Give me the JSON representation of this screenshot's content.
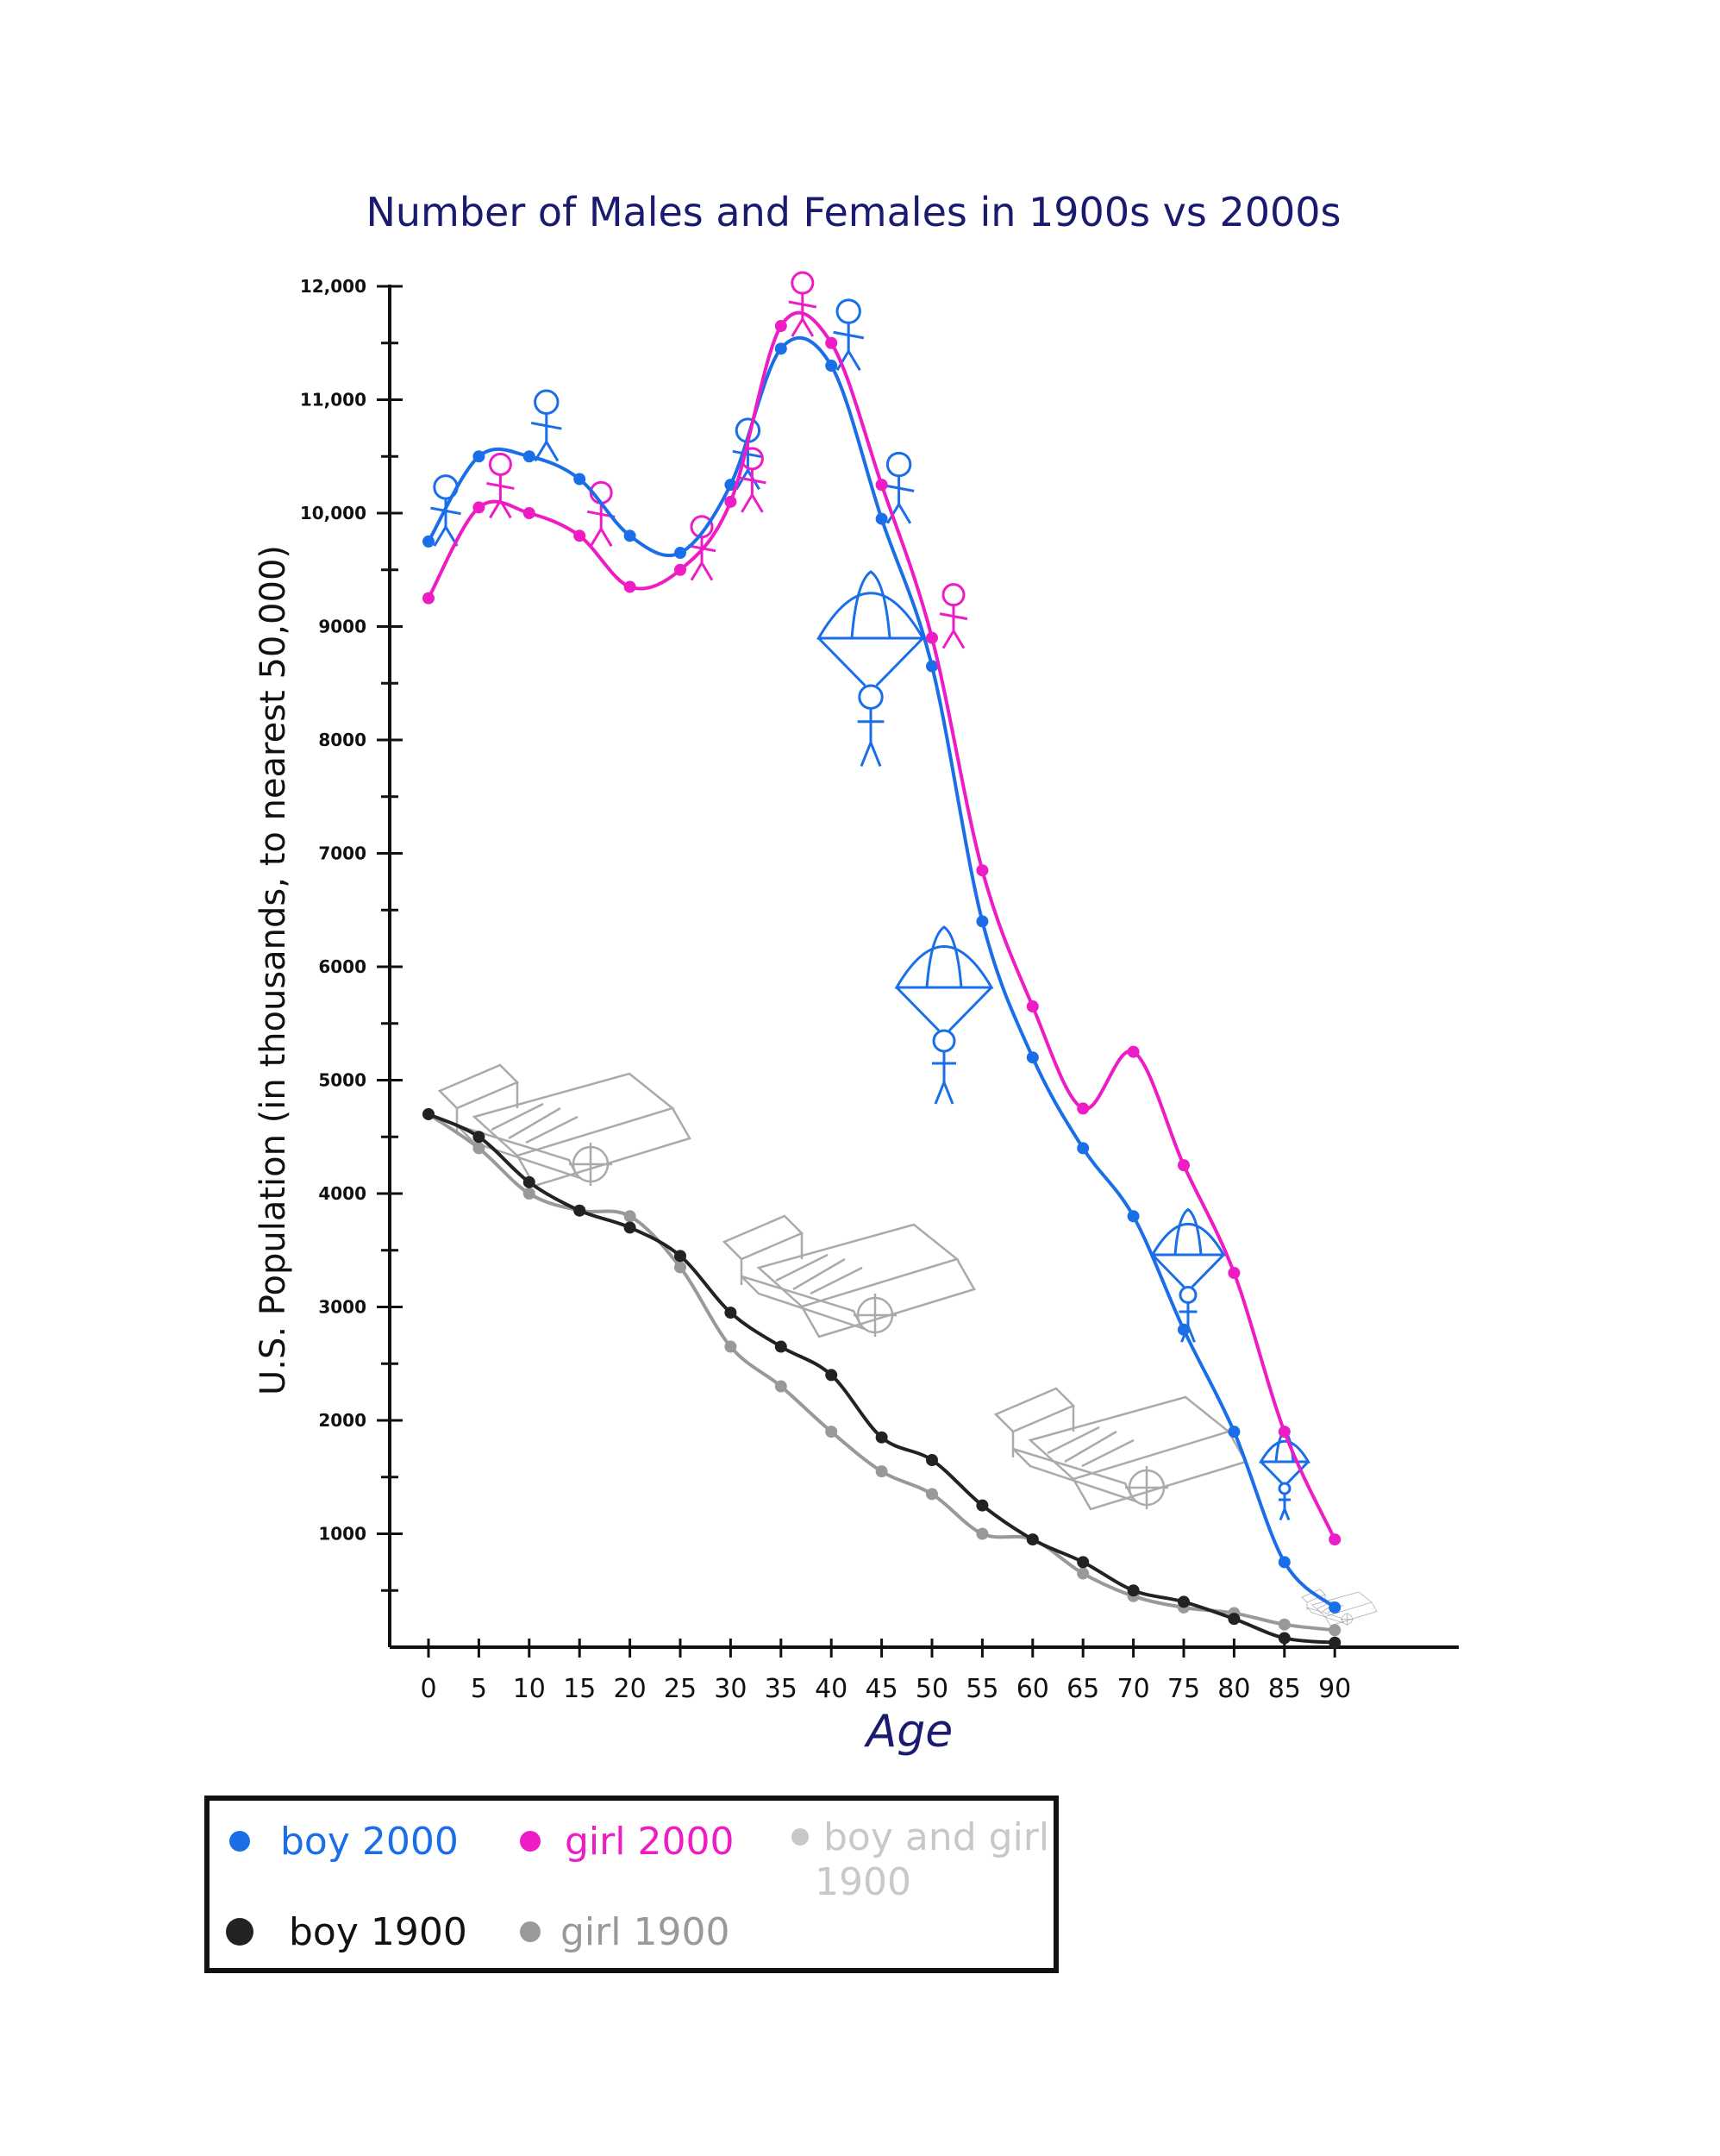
{
  "chart_data": {
    "type": "line",
    "title": "Number of Males and Females in 1900s vs 2000s",
    "xlabel": "Age",
    "ylabel": "U.S. Population (in thousands, to nearest 50,000)",
    "x": [
      0,
      5,
      10,
      15,
      20,
      25,
      30,
      35,
      40,
      45,
      50,
      55,
      60,
      65,
      70,
      75,
      80,
      85,
      90
    ],
    "x_tick_labels": [
      "0",
      "5",
      "10",
      "15",
      "20",
      "25",
      "30",
      "35",
      "40",
      "45",
      "50",
      "55",
      "60",
      "65",
      "70",
      "75",
      "80",
      "85",
      "90"
    ],
    "y_tick_labels": [
      {
        "value": 12000,
        "label": "12,000"
      },
      {
        "value": 11000,
        "label": "11,000"
      },
      {
        "value": 10000,
        "label": "10,000"
      },
      {
        "value": 9000,
        "label": "9000"
      },
      {
        "value": 8000,
        "label": "8000"
      },
      {
        "value": 7000,
        "label": "7000"
      },
      {
        "value": 6000,
        "label": "6000"
      },
      {
        "value": 5000,
        "label": "5000"
      },
      {
        "value": 4000,
        "label": "4000"
      },
      {
        "value": 3000,
        "label": "3000"
      },
      {
        "value": 2000,
        "label": "2000"
      },
      {
        "value": 1000,
        "label": "1000"
      }
    ],
    "ylim": [
      0,
      12000
    ],
    "xlim": [
      -4,
      100
    ],
    "grid": false,
    "legend_position": "bottom-left",
    "series": [
      {
        "name": "boy 2000",
        "color": "#1a6ee8",
        "values": [
          9750,
          10500,
          10500,
          10300,
          9800,
          9650,
          10250,
          11450,
          11300,
          9950,
          8650,
          6400,
          5200,
          4400,
          3800,
          2800,
          1900,
          750,
          350
        ]
      },
      {
        "name": "girl 2000",
        "color": "#ee1cc4",
        "values": [
          9250,
          10050,
          10000,
          9800,
          9350,
          9500,
          10100,
          11650,
          11500,
          10250,
          8900,
          6850,
          5650,
          4750,
          5250,
          4250,
          3300,
          1900,
          950
        ]
      },
      {
        "name": "boy 1900",
        "color": "#222222",
        "values": [
          4700,
          4500,
          4100,
          3850,
          3700,
          3450,
          2950,
          2650,
          2400,
          1850,
          1650,
          1250,
          950,
          750,
          500,
          400,
          250,
          80,
          40
        ]
      },
      {
        "name": "girl 1900",
        "color": "#999999",
        "values": [
          4700,
          4400,
          4000,
          3850,
          3800,
          3350,
          2650,
          2300,
          1900,
          1550,
          1350,
          1000,
          950,
          650,
          450,
          350,
          300,
          200,
          150
        ]
      }
    ],
    "legend": [
      {
        "label": "boy 2000",
        "color": "#1a6ee8"
      },
      {
        "label": "girl 2000",
        "color": "#ee1cc4"
      },
      {
        "label": "boy and girl 1900",
        "color": "#c8c8c8"
      },
      {
        "label": "boy 1900",
        "color": "#222222"
      },
      {
        "label": "girl 1900",
        "color": "#999999"
      }
    ]
  }
}
